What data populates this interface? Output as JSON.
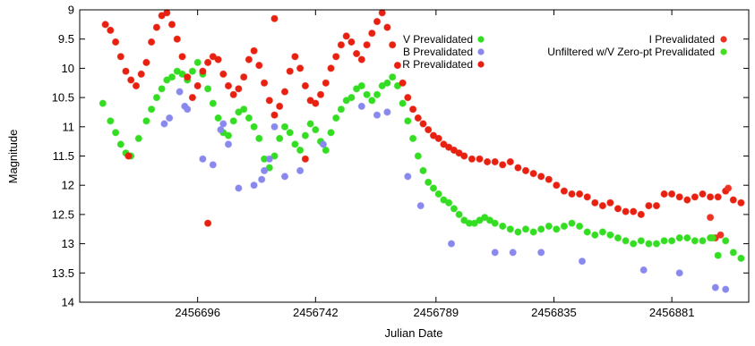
{
  "chart_data": {
    "type": "scatter",
    "xlabel": "Julian Date",
    "ylabel": "Magnitude",
    "xlim": [
      2456650,
      2456911
    ],
    "ylim": [
      9,
      14
    ],
    "y_inverted": true,
    "grid": false,
    "legend_placement": "top-right",
    "x_ticks": [
      2456696,
      2456742,
      2456789,
      2456835,
      2456881
    ],
    "x_tick_labels": [
      "2456696",
      "2456742",
      "2456789",
      "2456835",
      "2456881"
    ],
    "y_ticks": [
      9,
      9.5,
      10,
      10.5,
      11,
      11.5,
      12,
      12.5,
      13,
      13.5,
      14
    ],
    "y_tick_labels": [
      "9",
      "9.5",
      "10",
      "10.5",
      "11",
      "11.5",
      "12",
      "12.5",
      "13",
      "13.5",
      "14"
    ],
    "series": [
      {
        "name": "V Prevalidated",
        "color": "#33dd22",
        "points": [
          [
            2456659,
            10.6
          ],
          [
            2456662,
            10.9
          ],
          [
            2456664,
            11.1
          ],
          [
            2456666,
            11.3
          ],
          [
            2456668,
            11.45
          ],
          [
            2456670,
            11.5
          ],
          [
            2456673,
            11.2
          ],
          [
            2456676,
            10.9
          ],
          [
            2456678,
            10.7
          ],
          [
            2456680,
            10.5
          ],
          [
            2456682,
            10.35
          ],
          [
            2456684,
            10.2
          ],
          [
            2456686,
            10.15
          ],
          [
            2456688,
            10.05
          ],
          [
            2456690,
            10.1
          ],
          [
            2456692,
            10.2
          ],
          [
            2456694,
            10.05
          ],
          [
            2456696,
            9.9
          ],
          [
            2456698,
            10.1
          ],
          [
            2456700,
            10.35
          ],
          [
            2456702,
            10.6
          ],
          [
            2456704,
            10.85
          ],
          [
            2456706,
            11.1
          ],
          [
            2456708,
            11.15
          ],
          [
            2456710,
            10.9
          ],
          [
            2456712,
            10.75
          ],
          [
            2456714,
            10.7
          ],
          [
            2456716,
            10.85
          ],
          [
            2456718,
            11.0
          ],
          [
            2456720,
            11.2
          ],
          [
            2456722,
            11.55
          ],
          [
            2456724,
            11.7
          ],
          [
            2456726,
            11.5
          ],
          [
            2456728,
            11.2
          ],
          [
            2456730,
            11.0
          ],
          [
            2456732,
            11.1
          ],
          [
            2456734,
            11.3
          ],
          [
            2456736,
            11.4
          ],
          [
            2456738,
            11.15
          ],
          [
            2456740,
            10.95
          ],
          [
            2456742,
            11.05
          ],
          [
            2456744,
            11.25
          ],
          [
            2456746,
            11.4
          ],
          [
            2456748,
            11.1
          ],
          [
            2456750,
            10.85
          ],
          [
            2456752,
            10.7
          ],
          [
            2456754,
            10.55
          ],
          [
            2456756,
            10.5
          ],
          [
            2456758,
            10.35
          ],
          [
            2456760,
            10.3
          ],
          [
            2456762,
            10.45
          ],
          [
            2456764,
            10.55
          ],
          [
            2456766,
            10.45
          ],
          [
            2456768,
            10.3
          ],
          [
            2456770,
            10.25
          ],
          [
            2456772,
            10.15
          ],
          [
            2456774,
            10.3
          ],
          [
            2456776,
            10.6
          ],
          [
            2456778,
            10.9
          ],
          [
            2456780,
            11.2
          ],
          [
            2456782,
            11.5
          ],
          [
            2456784,
            11.75
          ],
          [
            2456786,
            11.95
          ],
          [
            2456788,
            12.05
          ],
          [
            2456790,
            12.15
          ],
          [
            2456792,
            12.25
          ],
          [
            2456794,
            12.3
          ],
          [
            2456796,
            12.4
          ],
          [
            2456798,
            12.5
          ],
          [
            2456800,
            12.6
          ],
          [
            2456802,
            12.65
          ],
          [
            2456804,
            12.65
          ],
          [
            2456806,
            12.6
          ],
          [
            2456808,
            12.55
          ],
          [
            2456810,
            12.6
          ],
          [
            2456812,
            12.65
          ],
          [
            2456815,
            12.7
          ],
          [
            2456818,
            12.75
          ],
          [
            2456821,
            12.8
          ],
          [
            2456824,
            12.75
          ],
          [
            2456827,
            12.8
          ],
          [
            2456830,
            12.75
          ],
          [
            2456833,
            12.7
          ],
          [
            2456836,
            12.75
          ],
          [
            2456839,
            12.7
          ],
          [
            2456842,
            12.65
          ],
          [
            2456845,
            12.7
          ],
          [
            2456848,
            12.8
          ],
          [
            2456851,
            12.85
          ],
          [
            2456854,
            12.8
          ],
          [
            2456857,
            12.85
          ],
          [
            2456860,
            12.9
          ],
          [
            2456863,
            12.95
          ],
          [
            2456866,
            13.0
          ],
          [
            2456869,
            12.95
          ],
          [
            2456872,
            13.0
          ],
          [
            2456875,
            13.0
          ],
          [
            2456878,
            12.95
          ],
          [
            2456881,
            12.95
          ],
          [
            2456884,
            12.9
          ],
          [
            2456887,
            12.9
          ],
          [
            2456890,
            12.95
          ],
          [
            2456893,
            12.95
          ],
          [
            2456896,
            12.9
          ],
          [
            2456899,
            13.2
          ],
          [
            2456902,
            12.95
          ],
          [
            2456905,
            13.15
          ],
          [
            2456908,
            13.25
          ]
        ]
      },
      {
        "name": "B Prevalidated",
        "color": "#8888ee",
        "points": [
          [
            2456683,
            10.95
          ],
          [
            2456685,
            10.85
          ],
          [
            2456689,
            10.4
          ],
          [
            2456691,
            10.65
          ],
          [
            2456692,
            10.7
          ],
          [
            2456698,
            11.55
          ],
          [
            2456702,
            11.65
          ],
          [
            2456705,
            11.05
          ],
          [
            2456706,
            10.95
          ],
          [
            2456708,
            11.3
          ],
          [
            2456712,
            12.05
          ],
          [
            2456718,
            12.0
          ],
          [
            2456721,
            11.9
          ],
          [
            2456722,
            11.75
          ],
          [
            2456724,
            11.55
          ],
          [
            2456726,
            11.0
          ],
          [
            2456730,
            11.85
          ],
          [
            2456736,
            11.75
          ],
          [
            2456745,
            11.3
          ],
          [
            2456760,
            10.65
          ],
          [
            2456766,
            10.8
          ],
          [
            2456770,
            10.75
          ],
          [
            2456778,
            11.85
          ],
          [
            2456783,
            12.35
          ],
          [
            2456795,
            13.0
          ],
          [
            2456812,
            13.15
          ],
          [
            2456819,
            13.15
          ],
          [
            2456830,
            13.15
          ],
          [
            2456846,
            13.3
          ],
          [
            2456870,
            13.45
          ],
          [
            2456884,
            13.5
          ],
          [
            2456898,
            13.75
          ],
          [
            2456902,
            13.78
          ]
        ]
      },
      {
        "name": "R Prevalidated",
        "color": "#e82010",
        "points": [
          [
            2456660,
            9.25
          ],
          [
            2456662,
            9.35
          ],
          [
            2456664,
            9.55
          ],
          [
            2456666,
            9.8
          ],
          [
            2456668,
            10.05
          ],
          [
            2456670,
            10.2
          ],
          [
            2456672,
            10.3
          ],
          [
            2456674,
            10.1
          ],
          [
            2456676,
            9.9
          ],
          [
            2456678,
            9.55
          ],
          [
            2456680,
            9.3
          ],
          [
            2456682,
            9.1
          ],
          [
            2456684,
            9.05
          ],
          [
            2456686,
            9.25
          ],
          [
            2456688,
            9.5
          ],
          [
            2456690,
            9.8
          ],
          [
            2456692,
            10.15
          ],
          [
            2456694,
            10.5
          ],
          [
            2456696,
            10.3
          ],
          [
            2456698,
            10.05
          ],
          [
            2456700,
            9.9
          ],
          [
            2456702,
            9.8
          ],
          [
            2456704,
            9.85
          ],
          [
            2456706,
            10.1
          ],
          [
            2456708,
            10.3
          ],
          [
            2456710,
            10.45
          ],
          [
            2456712,
            10.35
          ],
          [
            2456714,
            10.15
          ],
          [
            2456716,
            9.85
          ],
          [
            2456718,
            9.7
          ],
          [
            2456720,
            9.95
          ],
          [
            2456722,
            10.25
          ],
          [
            2456724,
            10.55
          ],
          [
            2456726,
            10.8
          ],
          [
            2456728,
            10.65
          ],
          [
            2456730,
            10.4
          ],
          [
            2456732,
            10.05
          ],
          [
            2456734,
            9.8
          ],
          [
            2456736,
            10.0
          ],
          [
            2456738,
            10.3
          ],
          [
            2456740,
            10.55
          ],
          [
            2456742,
            10.6
          ],
          [
            2456744,
            10.45
          ],
          [
            2456746,
            10.25
          ],
          [
            2456748,
            10.0
          ],
          [
            2456750,
            9.8
          ],
          [
            2456752,
            9.6
          ],
          [
            2456754,
            9.45
          ],
          [
            2456756,
            9.55
          ],
          [
            2456758,
            9.75
          ],
          [
            2456760,
            9.85
          ],
          [
            2456762,
            9.6
          ],
          [
            2456764,
            9.4
          ],
          [
            2456766,
            9.2
          ],
          [
            2456768,
            9.05
          ],
          [
            2456770,
            9.3
          ],
          [
            2456772,
            9.6
          ],
          [
            2456774,
            9.95
          ],
          [
            2456776,
            10.25
          ],
          [
            2456778,
            10.5
          ],
          [
            2456780,
            10.7
          ],
          [
            2456782,
            10.85
          ],
          [
            2456784,
            10.95
          ],
          [
            2456786,
            11.05
          ],
          [
            2456788,
            11.15
          ],
          [
            2456790,
            11.2
          ],
          [
            2456792,
            11.3
          ],
          [
            2456794,
            11.35
          ],
          [
            2456796,
            11.4
          ],
          [
            2456798,
            11.45
          ],
          [
            2456800,
            11.5
          ],
          [
            2456803,
            11.55
          ],
          [
            2456806,
            11.55
          ],
          [
            2456809,
            11.6
          ],
          [
            2456812,
            11.6
          ],
          [
            2456815,
            11.65
          ],
          [
            2456818,
            11.6
          ],
          [
            2456821,
            11.7
          ],
          [
            2456824,
            11.75
          ],
          [
            2456827,
            11.8
          ],
          [
            2456830,
            11.85
          ],
          [
            2456833,
            11.9
          ],
          [
            2456836,
            12.0
          ],
          [
            2456839,
            12.1
          ],
          [
            2456842,
            12.15
          ],
          [
            2456845,
            12.15
          ],
          [
            2456848,
            12.2
          ],
          [
            2456851,
            12.3
          ],
          [
            2456854,
            12.35
          ],
          [
            2456857,
            12.3
          ],
          [
            2456860,
            12.4
          ],
          [
            2456863,
            12.45
          ],
          [
            2456866,
            12.45
          ],
          [
            2456869,
            12.5
          ],
          [
            2456872,
            12.35
          ],
          [
            2456875,
            12.35
          ],
          [
            2456878,
            12.15
          ],
          [
            2456881,
            12.15
          ],
          [
            2456884,
            12.2
          ],
          [
            2456887,
            12.25
          ],
          [
            2456890,
            12.2
          ],
          [
            2456893,
            12.15
          ],
          [
            2456896,
            12.2
          ],
          [
            2456899,
            12.2
          ],
          [
            2456902,
            12.1
          ],
          [
            2456905,
            12.25
          ],
          [
            2456908,
            12.3
          ],
          [
            2456669,
            11.5
          ],
          [
            2456700,
            12.65
          ],
          [
            2456738,
            11.55
          ],
          [
            2456726,
            9.15
          ]
        ]
      },
      {
        "name": "I Prevalidated",
        "color": "#ee3322",
        "points": [
          [
            2456896,
            12.55
          ],
          [
            2456898,
            12.9
          ],
          [
            2456900,
            12.85
          ],
          [
            2456903,
            12.05
          ]
        ]
      },
      {
        "name": "Unfiltered w/V Zero-pt Prevalidated",
        "color": "#44dd22",
        "points": [
          [
            2456897,
            12.9
          ]
        ]
      }
    ]
  }
}
